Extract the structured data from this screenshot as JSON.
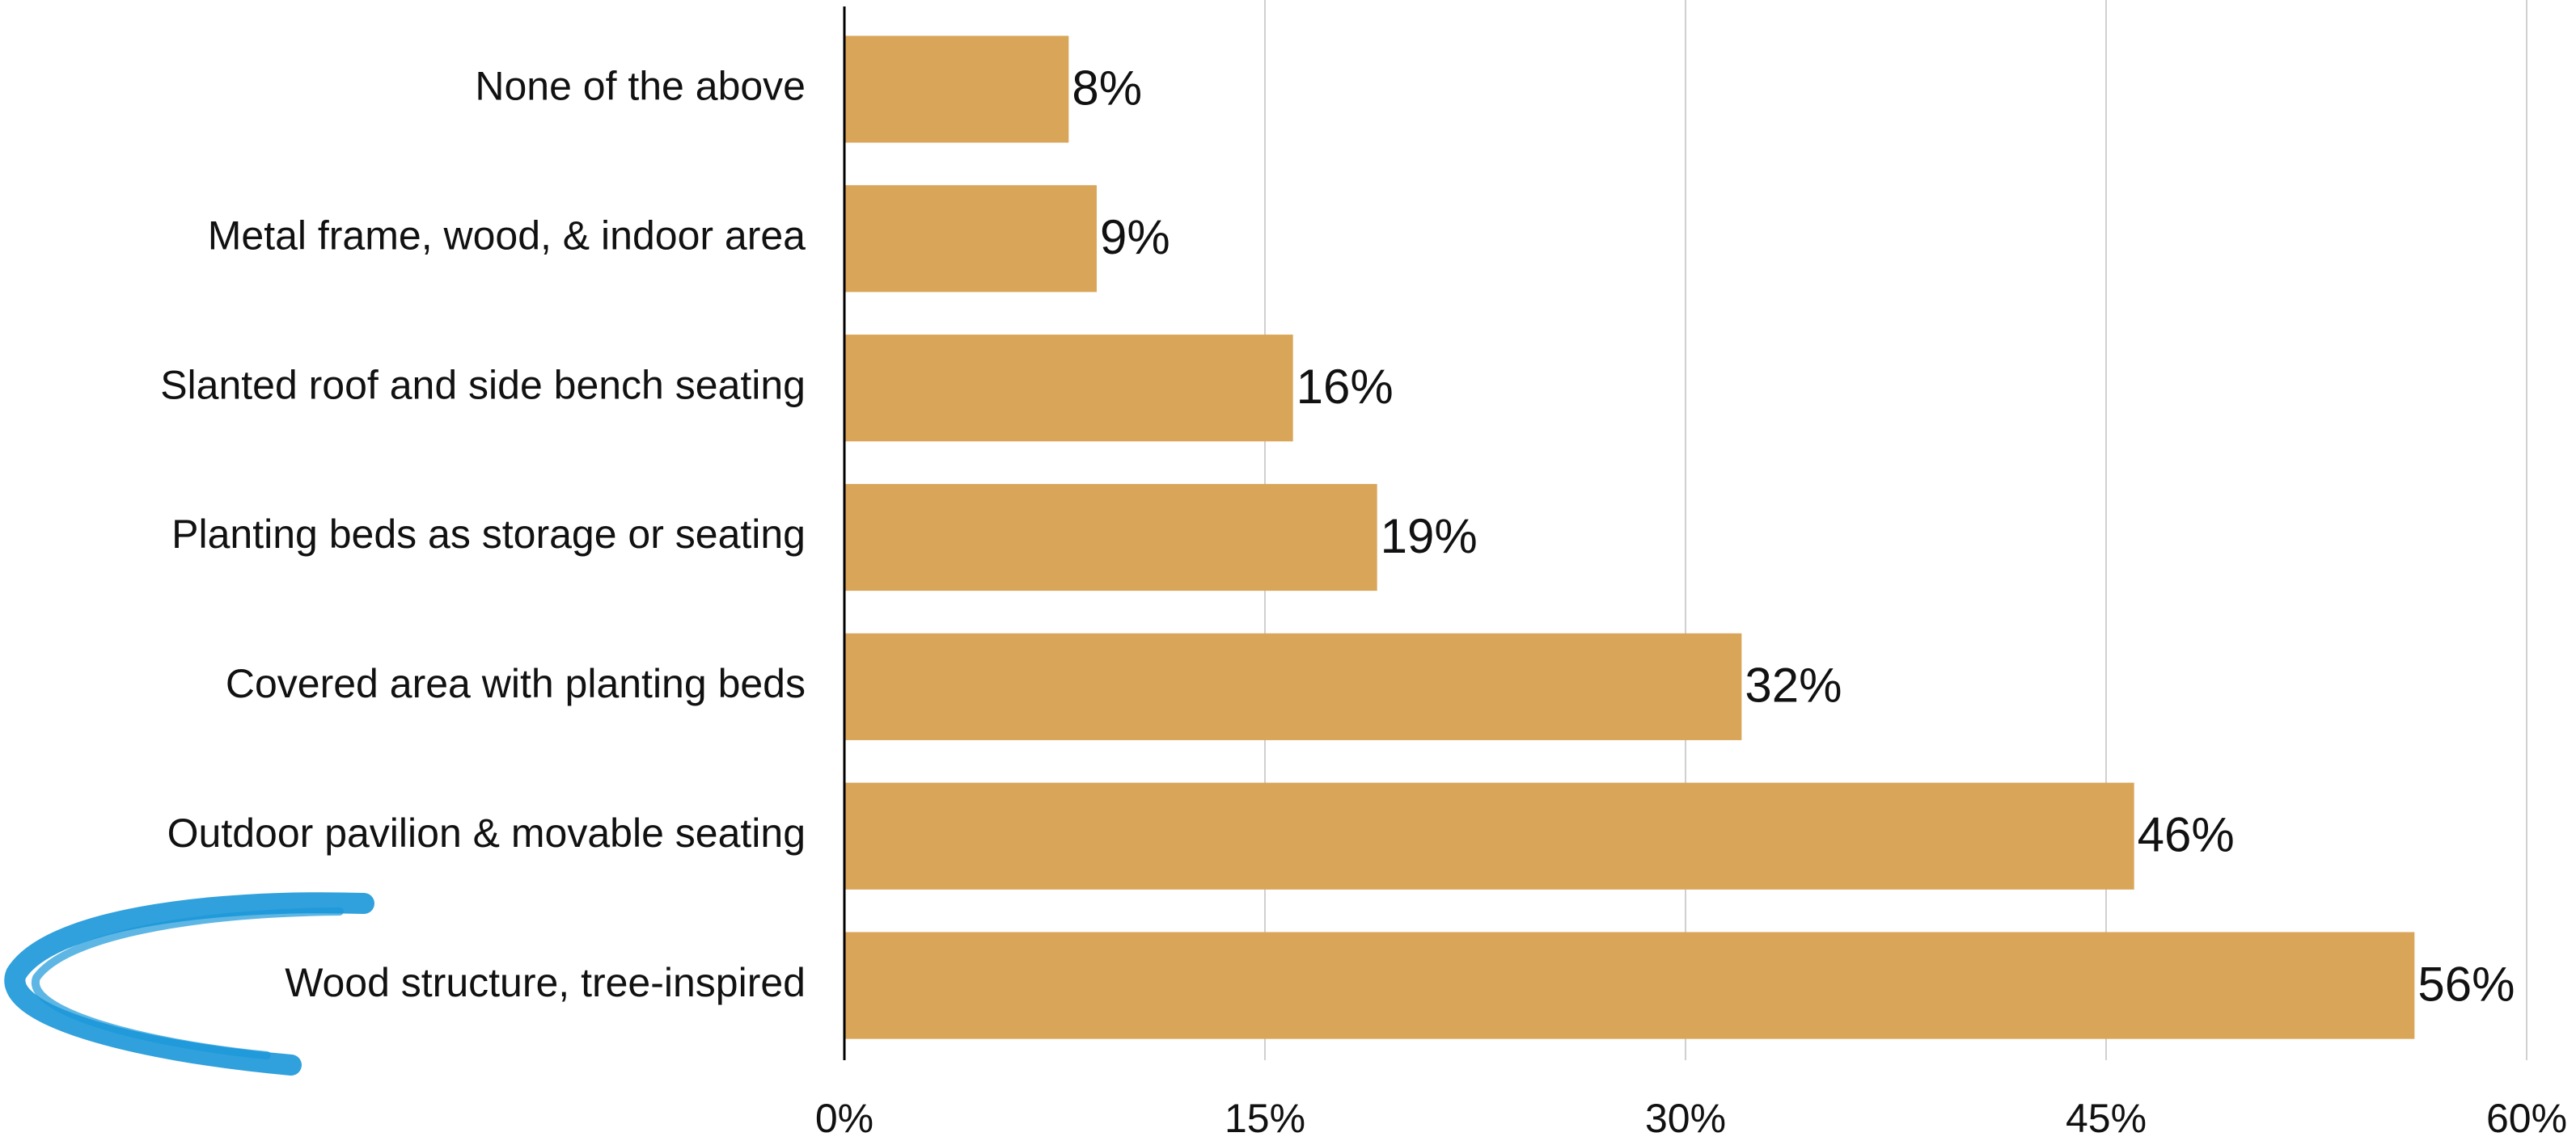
{
  "chart_data": {
    "type": "bar",
    "orientation": "horizontal",
    "categories": [
      "None of the above",
      "Metal frame, wood, & indoor area",
      "Slanted roof and side bench seating",
      "Planting beds as storage or seating",
      "Covered area with planting beds",
      "Outdoor pavilion & movable seating",
      "Wood structure, tree-inspired"
    ],
    "values": [
      8,
      9,
      16,
      19,
      32,
      46,
      56
    ],
    "value_labels": [
      "8%",
      "9%",
      "16%",
      "19%",
      "32%",
      "46%",
      "56%"
    ],
    "color": "#d9a558",
    "xlim": [
      0,
      60
    ],
    "xticks": [
      {
        "value": 0,
        "label": "0%"
      },
      {
        "value": 15,
        "label": "15%"
      },
      {
        "value": 30,
        "label": "30%"
      },
      {
        "value": 45,
        "label": "45%"
      },
      {
        "value": 60,
        "label": "60%"
      }
    ],
    "grid": true
  }
}
